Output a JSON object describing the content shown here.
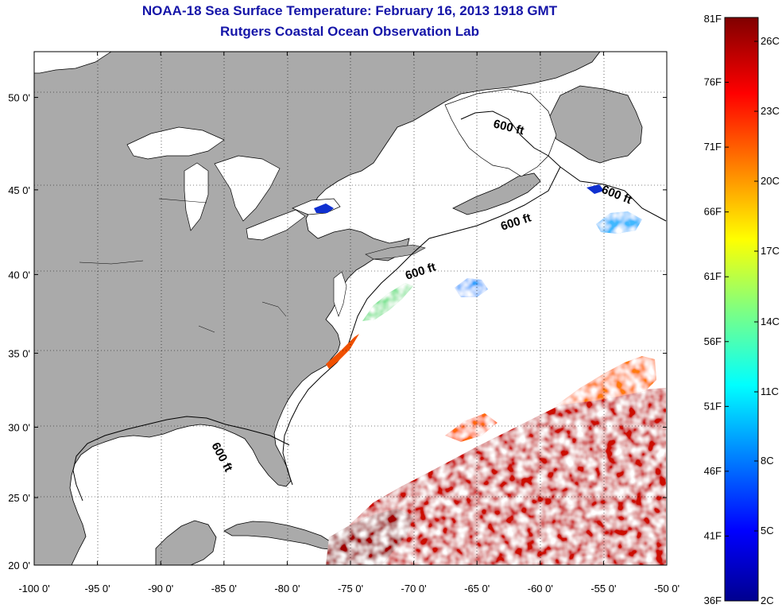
{
  "title": "NOAA-18 Sea Surface Temperature:  February 16, 2013 1918 GMT",
  "subtitle": "Rutgers Coastal Ocean Observation Lab",
  "axes": {
    "x_ticks": [
      "-100 0'",
      "-95 0'",
      "-90 0'",
      "-85 0'",
      "-80 0'",
      "-75 0'",
      "-70 0'",
      "-65 0'",
      "-60 0'",
      "-55 0'",
      "-50 0'"
    ],
    "x_values": [
      -100,
      -95,
      -90,
      -85,
      -80,
      -75,
      -70,
      -65,
      -60,
      -55,
      -50
    ],
    "y_ticks": [
      "20 0'",
      "25 0'",
      "30 0'",
      "35 0'",
      "40 0'",
      "45 0'",
      "50 0'"
    ],
    "y_values": [
      20,
      25,
      30,
      35,
      40,
      45,
      50
    ]
  },
  "colorbar": {
    "fahrenheit": [
      "81F",
      "76F",
      "71F",
      "66F",
      "61F",
      "56F",
      "51F",
      "46F",
      "41F",
      "36F"
    ],
    "celsius": [
      "26C",
      "23C",
      "20C",
      "17C",
      "14C",
      "11C",
      "8C",
      "5C",
      "2C"
    ]
  },
  "contour_label": "600 ft",
  "colors": {
    "title": "#1515a8",
    "land": "#aaaaaa",
    "ocean": "#ffffff"
  }
}
